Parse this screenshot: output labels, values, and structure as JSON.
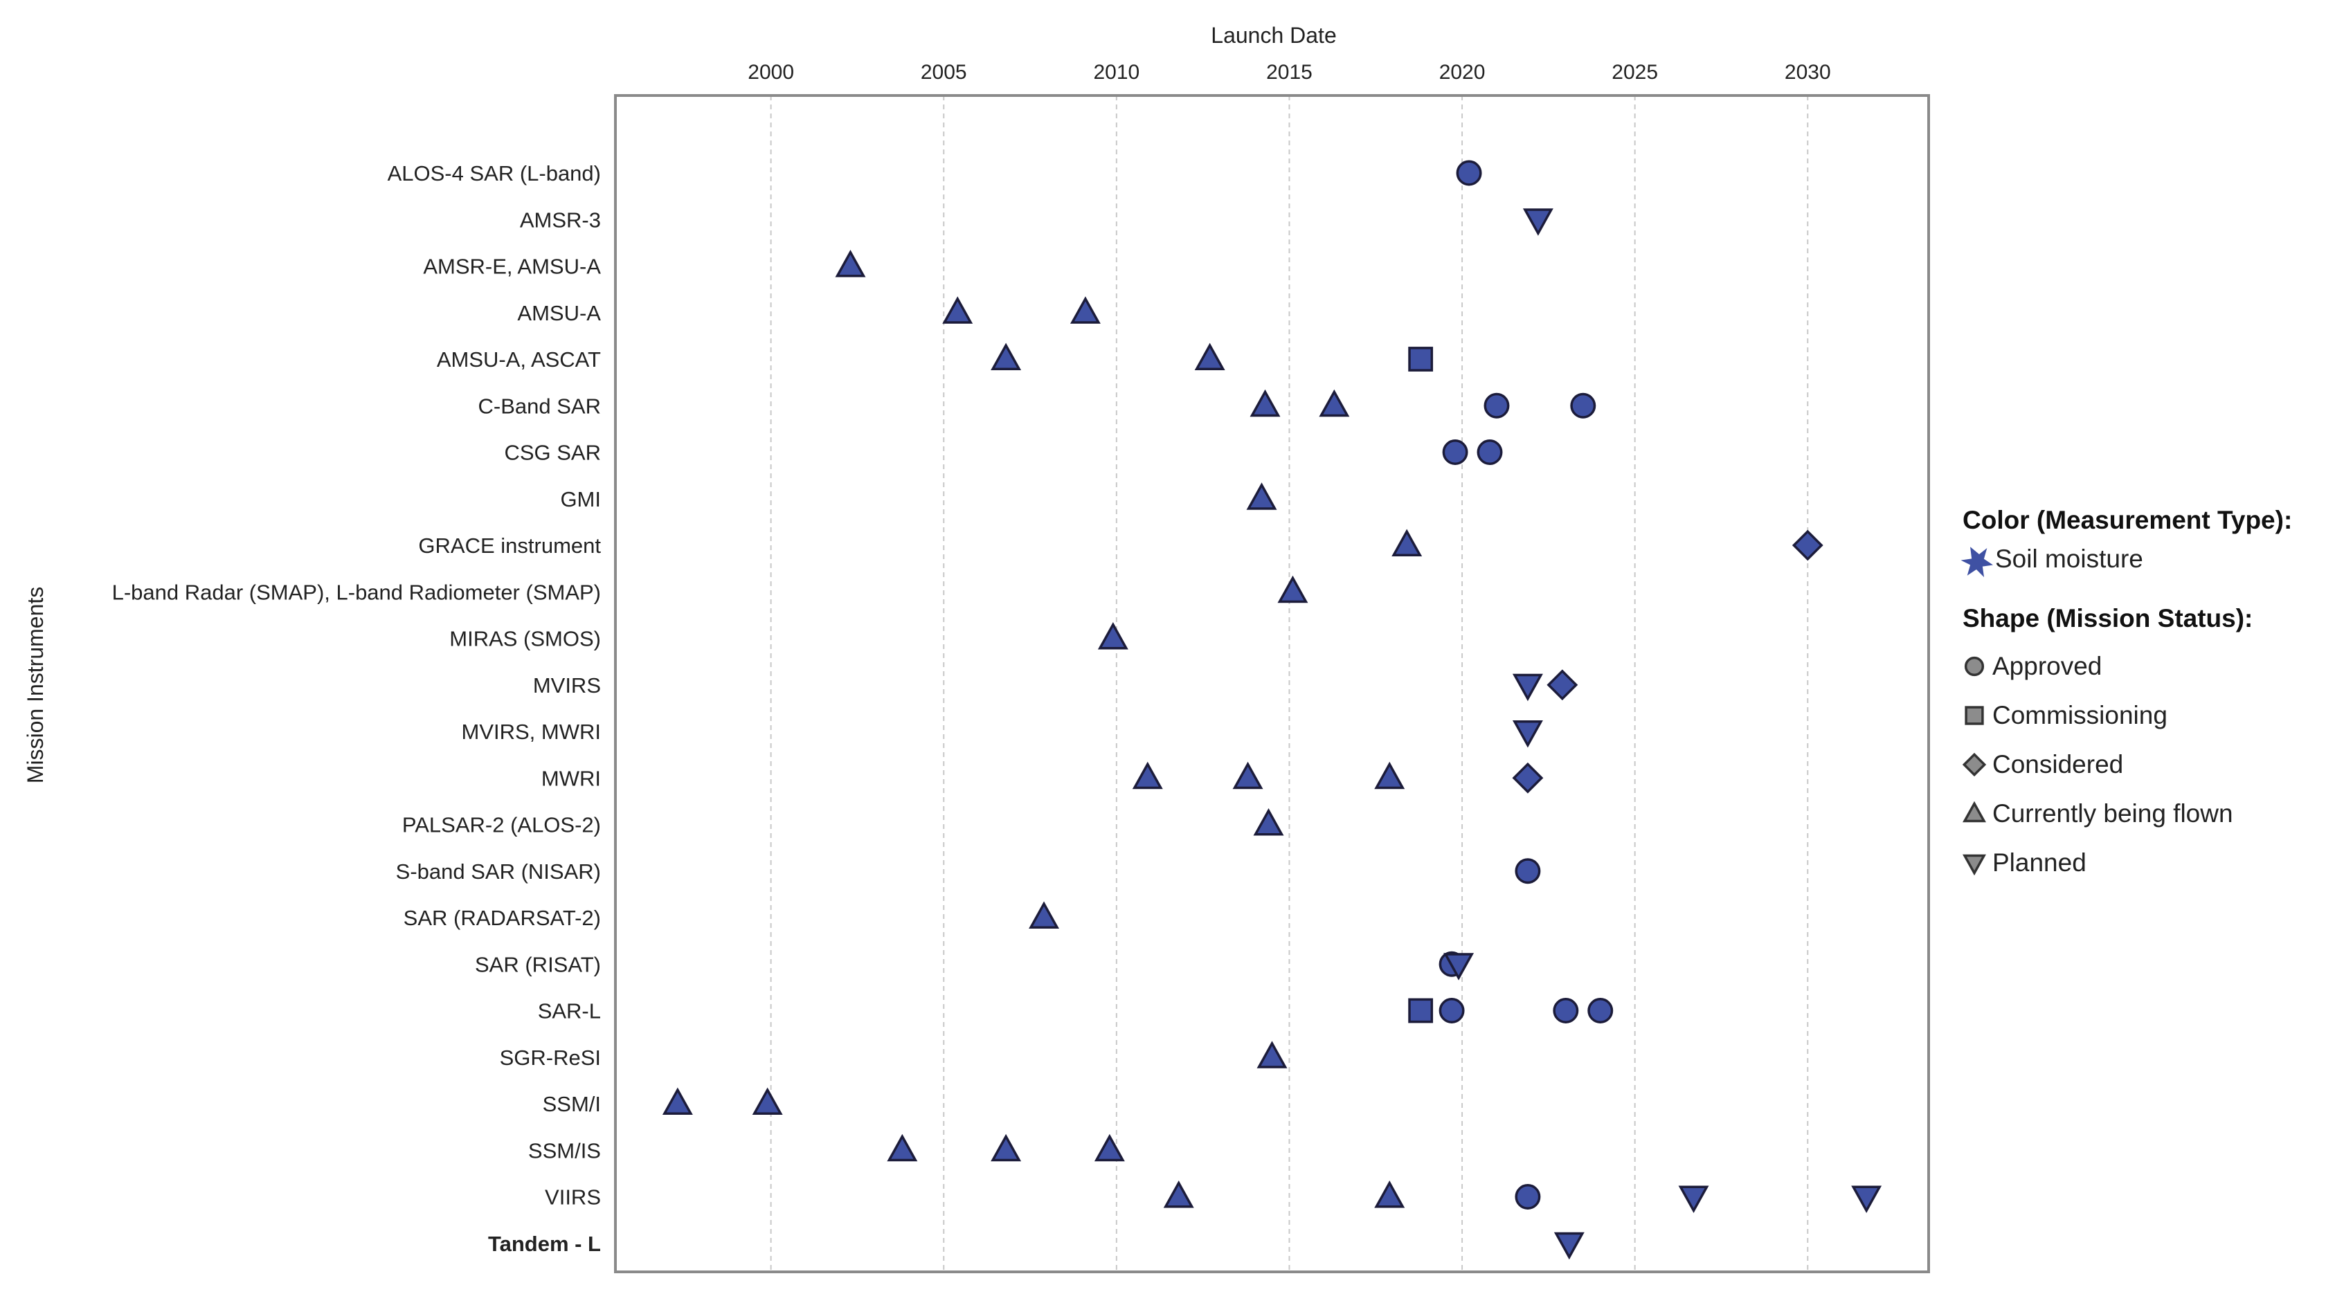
{
  "chart_data": {
    "type": "scatter",
    "title": "",
    "xlabel": "Launch Date",
    "ylabel": "Mission Instruments",
    "xlim": [
      1995.5,
      2033.5
    ],
    "x_ticks": [
      2000,
      2005,
      2010,
      2015,
      2020,
      2025,
      2030
    ],
    "x_tick_labels": [
      "2000",
      "2005",
      "2010",
      "2015",
      "2020",
      "2025",
      "2030"
    ],
    "x_grid": true,
    "x_axis_position": "top",
    "categories": [
      "ALOS-4 SAR (L-band)",
      "AMSR-3",
      "AMSR-E, AMSU-A",
      "AMSU-A",
      "AMSU-A, ASCAT",
      "C-Band SAR",
      "CSG SAR",
      "GMI",
      "GRACE instrument",
      "L-band Radar (SMAP), L-band Radiometer (SMAP)",
      "MIRAS (SMOS)",
      "MVIRS",
      "MVIRS, MWRI",
      "MWRI",
      "PALSAR-2 (ALOS-2)",
      "S-band SAR (NISAR)",
      "SAR (RADARSAT-2)",
      "SAR (RISAT)",
      "SAR-L",
      "SGR-ReSI",
      "SSM/I",
      "SSM/IS",
      "VIIRS",
      "Tandem - L"
    ],
    "bold_categories": [
      "Tandem - L"
    ],
    "points": [
      {
        "instrument": "ALOS-4 SAR (L-band)",
        "x": 2020.2,
        "status": "Approved"
      },
      {
        "instrument": "AMSR-3",
        "x": 2022.2,
        "status": "Planned"
      },
      {
        "instrument": "AMSR-E, AMSU-A",
        "x": 2002.3,
        "status": "Currently being flown"
      },
      {
        "instrument": "AMSU-A",
        "x": 2005.4,
        "status": "Currently being flown"
      },
      {
        "instrument": "AMSU-A",
        "x": 2009.1,
        "status": "Currently being flown"
      },
      {
        "instrument": "AMSU-A, ASCAT",
        "x": 2006.8,
        "status": "Currently being flown"
      },
      {
        "instrument": "AMSU-A, ASCAT",
        "x": 2012.7,
        "status": "Currently being flown"
      },
      {
        "instrument": "AMSU-A, ASCAT",
        "x": 2018.8,
        "status": "Commissioning"
      },
      {
        "instrument": "C-Band SAR",
        "x": 2014.3,
        "status": "Currently being flown"
      },
      {
        "instrument": "C-Band SAR",
        "x": 2016.3,
        "status": "Currently being flown"
      },
      {
        "instrument": "C-Band SAR",
        "x": 2021.0,
        "status": "Approved"
      },
      {
        "instrument": "C-Band SAR",
        "x": 2023.5,
        "status": "Approved"
      },
      {
        "instrument": "CSG SAR",
        "x": 2019.8,
        "status": "Approved"
      },
      {
        "instrument": "CSG SAR",
        "x": 2020.8,
        "status": "Approved"
      },
      {
        "instrument": "GMI",
        "x": 2014.2,
        "status": "Currently being flown"
      },
      {
        "instrument": "GRACE instrument",
        "x": 2018.4,
        "status": "Currently being flown"
      },
      {
        "instrument": "GRACE instrument",
        "x": 2030.0,
        "status": "Considered"
      },
      {
        "instrument": "L-band Radar (SMAP), L-band Radiometer (SMAP)",
        "x": 2015.1,
        "status": "Currently being flown"
      },
      {
        "instrument": "MIRAS (SMOS)",
        "x": 2009.9,
        "status": "Currently being flown"
      },
      {
        "instrument": "MVIRS",
        "x": 2021.9,
        "status": "Planned"
      },
      {
        "instrument": "MVIRS",
        "x": 2022.9,
        "status": "Considered"
      },
      {
        "instrument": "MVIRS, MWRI",
        "x": 2021.9,
        "status": "Planned"
      },
      {
        "instrument": "MWRI",
        "x": 2010.9,
        "status": "Currently being flown"
      },
      {
        "instrument": "MWRI",
        "x": 2013.8,
        "status": "Currently being flown"
      },
      {
        "instrument": "MWRI",
        "x": 2017.9,
        "status": "Currently being flown"
      },
      {
        "instrument": "MWRI",
        "x": 2021.9,
        "status": "Considered"
      },
      {
        "instrument": "PALSAR-2 (ALOS-2)",
        "x": 2014.4,
        "status": "Currently being flown"
      },
      {
        "instrument": "S-band SAR (NISAR)",
        "x": 2021.9,
        "status": "Approved"
      },
      {
        "instrument": "SAR (RADARSAT-2)",
        "x": 2007.9,
        "status": "Currently being flown"
      },
      {
        "instrument": "SAR (RISAT)",
        "x": 2019.7,
        "status": "Approved"
      },
      {
        "instrument": "SAR (RISAT)",
        "x": 2019.9,
        "status": "Planned"
      },
      {
        "instrument": "SAR-L",
        "x": 2018.8,
        "status": "Commissioning"
      },
      {
        "instrument": "SAR-L",
        "x": 2019.7,
        "status": "Approved"
      },
      {
        "instrument": "SAR-L",
        "x": 2023.0,
        "status": "Approved"
      },
      {
        "instrument": "SAR-L",
        "x": 2024.0,
        "status": "Approved"
      },
      {
        "instrument": "SGR-ReSI",
        "x": 2014.5,
        "status": "Currently being flown"
      },
      {
        "instrument": "SSM/I",
        "x": 1997.3,
        "status": "Currently being flown"
      },
      {
        "instrument": "SSM/I",
        "x": 1999.9,
        "status": "Currently being flown"
      },
      {
        "instrument": "SSM/IS",
        "x": 2003.8,
        "status": "Currently being flown"
      },
      {
        "instrument": "SSM/IS",
        "x": 2006.8,
        "status": "Currently being flown"
      },
      {
        "instrument": "SSM/IS",
        "x": 2009.8,
        "status": "Currently being flown"
      },
      {
        "instrument": "VIIRS",
        "x": 2011.8,
        "status": "Currently being flown"
      },
      {
        "instrument": "VIIRS",
        "x": 2017.9,
        "status": "Currently being flown"
      },
      {
        "instrument": "VIIRS",
        "x": 2021.9,
        "status": "Approved"
      },
      {
        "instrument": "VIIRS",
        "x": 2026.7,
        "status": "Planned"
      },
      {
        "instrument": "VIIRS",
        "x": 2031.7,
        "status": "Planned"
      },
      {
        "instrument": "Tandem - L",
        "x": 2023.1,
        "status": "Planned"
      }
    ],
    "legend": {
      "placement": "right",
      "color_title": "Color (Measurement Type):",
      "color_entries": [
        {
          "label": "Soil moisture",
          "color": "#3f51a3"
        }
      ],
      "shape_title": "Shape (Mission Status):",
      "shape_entries": [
        {
          "label": "Approved",
          "shape": "circle"
        },
        {
          "label": "Commissioning",
          "shape": "square"
        },
        {
          "label": "Considered",
          "shape": "diamond"
        },
        {
          "label": "Currently being flown",
          "shape": "triangle-up"
        },
        {
          "label": "Planned",
          "shape": "triangle-down"
        }
      ]
    }
  },
  "colors": {
    "marker_fill": "#3f51a3",
    "marker_stroke": "#1c1c3a",
    "legend_shape_fill": "#8c8c8c",
    "legend_shape_stroke": "#333333",
    "frame": "#8a8a8a",
    "grid": "#c8c8c8"
  }
}
